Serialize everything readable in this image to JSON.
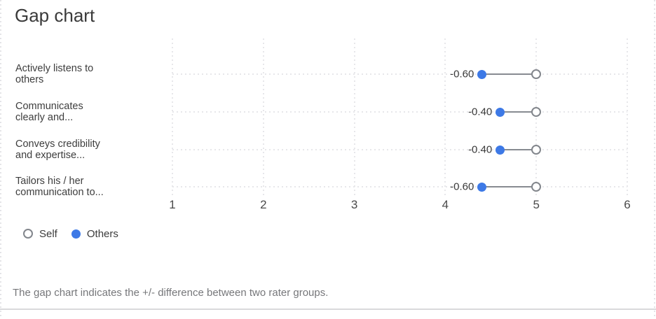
{
  "title": "Gap chart",
  "legend": {
    "self": "Self",
    "others": "Others"
  },
  "caption": "The gap chart indicates the +/- difference between two rater groups.",
  "colors": {
    "others_point": "#3d79e6",
    "self_ring": "#82868c",
    "connector": "#878b91",
    "grid": "#e7e7ea"
  },
  "chart_data": {
    "type": "dumbbell-gap",
    "categories": [
      "Actively listens to others",
      "Communicates clearly and...",
      "Conveys credibility and expertise...",
      "Tailors his / her communication to..."
    ],
    "category_lines": [
      [
        "Actively listens to",
        "others"
      ],
      [
        "Communicates",
        "clearly and..."
      ],
      [
        "Conveys credibility",
        "and expertise..."
      ],
      [
        "Tailors his / her",
        "communication to..."
      ]
    ],
    "series": [
      {
        "name": "Self",
        "values": [
          5.0,
          5.0,
          5.0,
          5.0
        ]
      },
      {
        "name": "Others",
        "values": [
          4.4,
          4.6,
          4.6,
          4.4
        ]
      }
    ],
    "gap_labels": [
      "-0.60",
      "-0.40",
      "-0.40",
      "-0.60"
    ],
    "x_ticks": [
      "1",
      "2",
      "3",
      "4",
      "5",
      "6"
    ],
    "xlim": [
      0.5,
      6.5
    ],
    "grid": "dotted",
    "legend_position": "bottom-left"
  }
}
